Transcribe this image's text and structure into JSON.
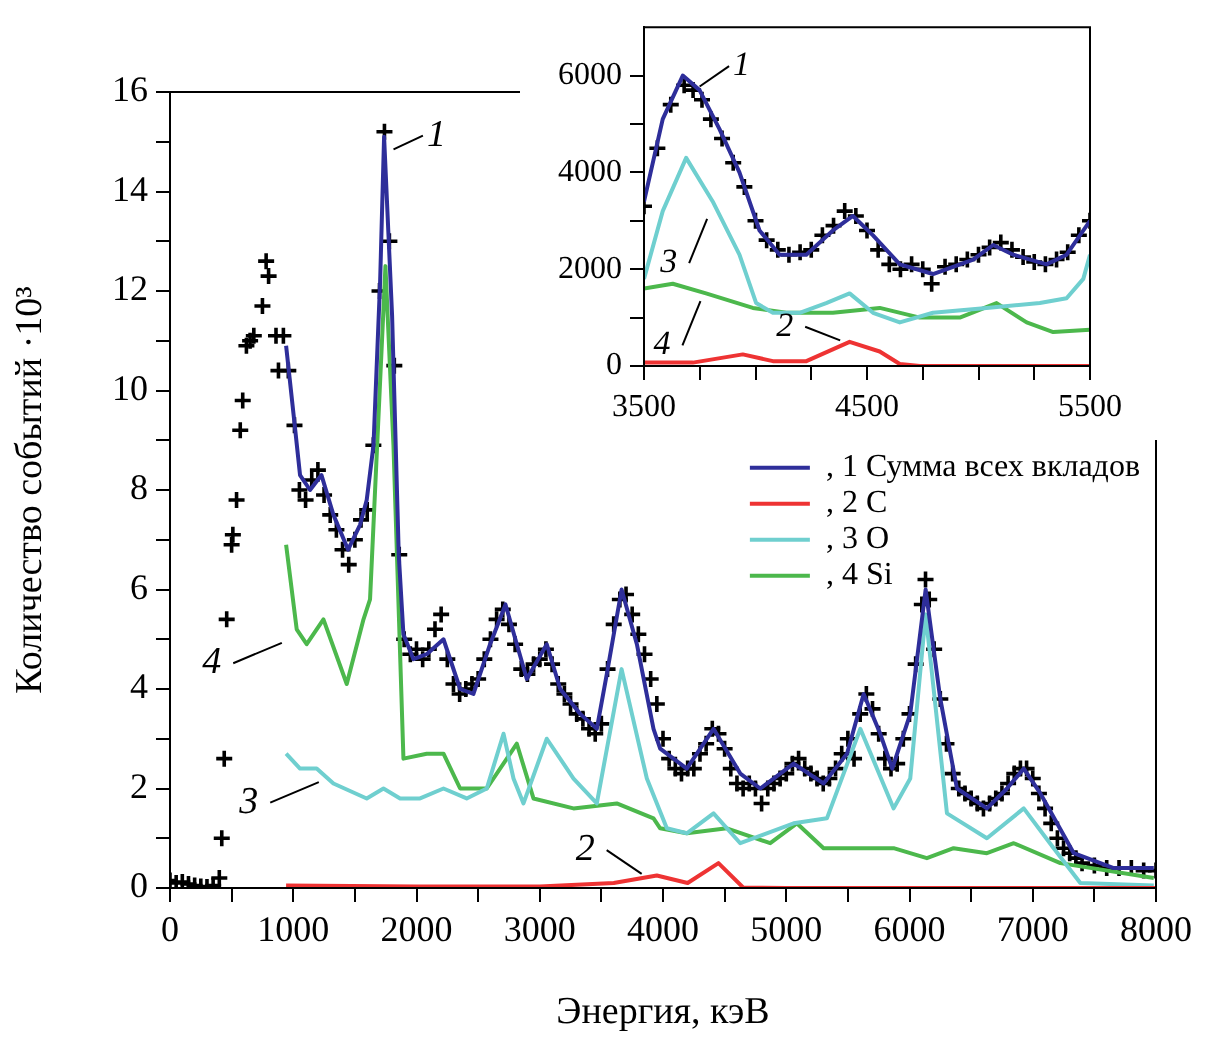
{
  "chart_data": [
    {
      "type": "line",
      "xlabel": "Энергия, кэВ",
      "ylabel": "Количество событий ·10³",
      "legend": "right",
      "grid": false,
      "marker": "none",
      "line_style": "solid",
      "xlim": [
        0,
        8000
      ],
      "ylim": [
        0,
        16
      ],
      "xticks": [
        0,
        {
          "value": 500,
          "label": null
        },
        1000,
        {
          "value": 1500,
          "label": null
        },
        2000,
        {
          "value": 2500,
          "label": null
        },
        3000,
        {
          "value": 3500,
          "label": null
        },
        4000,
        {
          "value": 4500,
          "label": null
        },
        5000,
        {
          "value": 5500,
          "label": null
        },
        6000,
        {
          "value": 6500,
          "label": null
        },
        7000,
        {
          "value": 7500,
          "label": null
        },
        8000
      ],
      "yticks": [
        0,
        {
          "value": 1,
          "label": null
        },
        2,
        {
          "value": 3,
          "label": null
        },
        4,
        {
          "value": 5,
          "label": null
        },
        6,
        {
          "value": 7,
          "label": null
        },
        8,
        {
          "value": 9,
          "label": null
        },
        10,
        {
          "value": 11,
          "label": null
        },
        12,
        {
          "value": 13,
          "label": null
        },
        14,
        {
          "value": 15,
          "label": null
        },
        16
      ],
      "annotations": [
        {
          "text": "1",
          "x": 1760,
          "y": 14.8
        },
        {
          "text": "2",
          "x": 3900,
          "y": 0.2
        },
        {
          "text": "3",
          "x": 1300,
          "y": 2.2
        },
        {
          "text": "4",
          "x": 1000,
          "y": 5.0
        }
      ],
      "series": [
        {
          "type": "scatter",
          "marker": "cross",
          "color": "#000000",
          "x": [
            0,
            50,
            100,
            150,
            200,
            250,
            300,
            350,
            400,
            420,
            440,
            460,
            500,
            510,
            540,
            570,
            590,
            620,
            650,
            680,
            750,
            780,
            800,
            860,
            880,
            920,
            960,
            1010,
            1050,
            1100,
            1150,
            1200,
            1250,
            1300,
            1350,
            1400,
            1450,
            1500,
            1550,
            1600,
            1650,
            1700,
            1740,
            1780,
            1820,
            1860,
            1900,
            1950,
            2000,
            2050,
            2100,
            2150,
            2200,
            2250,
            2300,
            2350,
            2400,
            2450,
            2500,
            2550,
            2600,
            2650,
            2700,
            2750,
            2800,
            2850,
            2900,
            2950,
            3000,
            3050,
            3100,
            3150,
            3200,
            3250,
            3300,
            3350,
            3400,
            3450,
            3500,
            3550,
            3600,
            3650,
            3700,
            3750,
            3800,
            3850,
            3900,
            3950,
            4000,
            4050,
            4100,
            4150,
            4200,
            4250,
            4300,
            4350,
            4400,
            4450,
            4500,
            4550,
            4600,
            4650,
            4700,
            4750,
            4800,
            4850,
            4900,
            4950,
            5000,
            5050,
            5100,
            5150,
            5200,
            5250,
            5300,
            5350,
            5400,
            5450,
            5500,
            5550,
            5600,
            5650,
            5700,
            5750,
            5800,
            5850,
            5900,
            5950,
            6000,
            6050,
            6100,
            6130,
            6160,
            6200,
            6250,
            6300,
            6350,
            6400,
            6450,
            6500,
            6550,
            6600,
            6650,
            6700,
            6750,
            6800,
            6850,
            6900,
            6950,
            7000,
            7050,
            7100,
            7150,
            7200,
            7250,
            7300,
            7350,
            7400,
            7500,
            7600,
            7700,
            7800,
            7900,
            8000
          ],
          "values": [
            0.15,
            0.1,
            0.12,
            0.08,
            0.05,
            0.03,
            0.02,
            0.05,
            0.2,
            1.0,
            2.6,
            5.4,
            6.9,
            7.1,
            7.8,
            9.2,
            9.8,
            10.9,
            11.0,
            11.1,
            11.7,
            12.6,
            12.3,
            11.1,
            10.4,
            11.1,
            10.4,
            9.3,
            8.0,
            7.8,
            8.2,
            8.4,
            7.9,
            7.5,
            7.2,
            6.8,
            6.5,
            7.0,
            7.4,
            7.6,
            8.9,
            12.0,
            15.2,
            13.0,
            10.5,
            6.7,
            5.0,
            4.7,
            4.8,
            4.6,
            4.8,
            5.2,
            5.5,
            4.6,
            4.1,
            3.9,
            4.0,
            4.1,
            4.2,
            4.6,
            5.0,
            5.4,
            5.6,
            5.3,
            4.9,
            4.4,
            4.3,
            4.5,
            4.6,
            4.8,
            4.5,
            4.1,
            3.9,
            3.7,
            3.5,
            3.4,
            3.2,
            3.1,
            3.3,
            4.4,
            5.3,
            5.8,
            5.9,
            5.5,
            5.1,
            4.7,
            4.2,
            3.7,
            3.0,
            2.6,
            2.4,
            2.3,
            2.4,
            2.4,
            2.7,
            2.9,
            3.2,
            3.1,
            2.8,
            2.4,
            2.1,
            2.0,
            2.1,
            2.0,
            1.7,
            2.0,
            2.1,
            2.2,
            2.3,
            2.5,
            2.6,
            2.4,
            2.3,
            2.2,
            2.1,
            2.2,
            2.4,
            2.7,
            3.0,
            2.6,
            3.5,
            3.9,
            3.6,
            3.1,
            2.6,
            2.4,
            2.5,
            3.0,
            3.5,
            4.5,
            5.7,
            6.2,
            5.8,
            4.8,
            3.8,
            2.9,
            2.3,
            2.0,
            1.9,
            1.8,
            1.7,
            1.6,
            1.7,
            1.8,
            1.9,
            2.1,
            2.3,
            2.4,
            2.4,
            2.2,
            1.9,
            1.6,
            1.3,
            1.0,
            0.8,
            0.7,
            0.6,
            0.5,
            0.45,
            0.4,
            0.4,
            0.4,
            0.35,
            0.35
          ]
        },
        {
          "name": ", 1 Сумма всех вкладов",
          "color": "#2e2e9a",
          "x": [
            942,
            1012,
            1055,
            1136,
            1229,
            1326,
            1445,
            1542,
            1596,
            1651,
            1705,
            1737,
            1802,
            1856,
            1894,
            1975,
            2083,
            2219,
            2354,
            2462,
            2597,
            2722,
            2814,
            2895,
            3057,
            3166,
            3328,
            3463,
            3544,
            3664,
            3788,
            3923,
            3977,
            4193,
            4410,
            4627,
            4789,
            5060,
            5303,
            5493,
            5628,
            5763,
            5860,
            6006,
            6131,
            6250,
            6385,
            6628,
            6791,
            6927,
            7062,
            7333,
            7657,
            7982
          ],
          "values": [
            10.9,
            9.3,
            8.3,
            8.0,
            8.3,
            7.5,
            6.8,
            7.3,
            7.8,
            8.9,
            12.2,
            15.1,
            11.5,
            6.7,
            5.1,
            4.6,
            4.7,
            5.0,
            4.0,
            3.9,
            4.9,
            5.7,
            4.9,
            4.2,
            4.9,
            4.0,
            3.5,
            3.2,
            4.3,
            6.0,
            4.9,
            3.2,
            2.8,
            2.4,
            3.2,
            2.3,
            2.0,
            2.5,
            2.1,
            2.7,
            3.9,
            3.1,
            2.4,
            3.5,
            6.0,
            3.8,
            2.0,
            1.6,
            2.0,
            2.4,
            1.9,
            0.7,
            0.4,
            0.4
          ]
        },
        {
          "name": ", 2 C",
          "color": "#ee3333",
          "x": [
            942,
            2000,
            3000,
            3600,
            3950,
            4200,
            4450,
            4650,
            5000,
            8000
          ],
          "values": [
            0.05,
            0.03,
            0.03,
            0.1,
            0.25,
            0.1,
            0.5,
            0.01,
            0,
            0
          ]
        },
        {
          "name": ", 3 O",
          "color": "#6fcfcf",
          "x": [
            942,
            1055,
            1190,
            1326,
            1596,
            1732,
            1867,
            2029,
            2219,
            2407,
            2570,
            2706,
            2787,
            2868,
            3057,
            3274,
            3463,
            3664,
            3869,
            4031,
            4193,
            4410,
            4627,
            5060,
            5330,
            5601,
            5871,
            6006,
            6131,
            6304,
            6628,
            6927,
            7170,
            7386,
            7982
          ],
          "values": [
            2.7,
            2.4,
            2.4,
            2.1,
            1.8,
            2.0,
            1.8,
            1.8,
            2.0,
            1.8,
            2.0,
            3.1,
            2.2,
            1.7,
            3.0,
            2.2,
            1.7,
            4.4,
            2.2,
            1.2,
            1.1,
            1.5,
            0.9,
            1.3,
            1.4,
            3.2,
            1.6,
            2.2,
            5.5,
            1.5,
            1.0,
            1.6,
            0.8,
            0.1,
            0.05
          ]
        },
        {
          "name": ", 4 Si",
          "color": "#4cb84c",
          "x": [
            942,
            1028,
            1109,
            1245,
            1434,
            1570,
            1623,
            1748,
            1813,
            1894,
            2083,
            2219,
            2354,
            2570,
            2814,
            2949,
            3274,
            3625,
            3923,
            3977,
            4193,
            4518,
            4870,
            5086,
            5303,
            5871,
            6141,
            6358,
            6628,
            6846,
            7224,
            7982
          ],
          "values": [
            6.9,
            5.2,
            4.9,
            5.4,
            4.1,
            5.4,
            5.8,
            12.5,
            8.9,
            2.6,
            2.7,
            2.7,
            2.0,
            2.0,
            2.9,
            1.8,
            1.6,
            1.7,
            1.4,
            1.2,
            1.1,
            1.2,
            0.9,
            1.3,
            0.8,
            0.8,
            0.6,
            0.8,
            0.7,
            0.9,
            0.5,
            0.2
          ]
        }
      ]
    },
    {
      "type": "line",
      "grid": false,
      "marker": "none",
      "line_style": "solid",
      "xlim": [
        3500,
        5500
      ],
      "ylim": [
        0,
        7000
      ],
      "xticks": [
        3500,
        {
          "value": 3750,
          "label": null
        },
        {
          "value": 4000,
          "label": null
        },
        {
          "value": 4250,
          "label": null
        },
        4500,
        {
          "value": 4750,
          "label": null
        },
        {
          "value": 5000,
          "label": null
        },
        {
          "value": 5250,
          "label": null
        },
        5500
      ],
      "yticks": [
        0,
        {
          "value": 1000,
          "label": null
        },
        2000,
        {
          "value": 3000,
          "label": null
        },
        4000,
        {
          "value": 5000,
          "label": null
        },
        6000
      ],
      "annotations": [
        {
          "text": "1",
          "x": 3720,
          "y": 5700
        },
        {
          "text": "2",
          "x": 4420,
          "y": 480
        },
        {
          "text": "3",
          "x": 3810,
          "y": 3200
        },
        {
          "text": "4",
          "x": 3780,
          "y": 1500
        }
      ],
      "series": [
        {
          "type": "scatter",
          "marker": "cross",
          "color": "#000000",
          "x": [
            3500,
            3560,
            3620,
            3680,
            3720,
            3760,
            3800,
            3850,
            3900,
            3950,
            4000,
            4050,
            4100,
            4150,
            4200,
            4250,
            4300,
            4350,
            4400,
            4450,
            4500,
            4550,
            4600,
            4650,
            4700,
            4750,
            4790,
            4850,
            4900,
            4950,
            5000,
            5050,
            5100,
            5150,
            5200,
            5250,
            5300,
            5350,
            5400,
            5450,
            5500
          ],
          "values": [
            3300,
            4500,
            5400,
            5800,
            5700,
            5500,
            5100,
            4700,
            4200,
            3700,
            3000,
            2600,
            2400,
            2300,
            2350,
            2400,
            2700,
            2900,
            3200,
            3100,
            2800,
            2400,
            2100,
            2000,
            2100,
            2000,
            1700,
            2050,
            2100,
            2200,
            2300,
            2450,
            2550,
            2400,
            2250,
            2150,
            2100,
            2200,
            2350,
            2700,
            3000
          ]
        },
        {
          "color": "#2e2e9a",
          "x": [
            3500,
            3584,
            3674,
            3749,
            3838,
            3928,
            4018,
            4108,
            4228,
            4347,
            4437,
            4527,
            4647,
            4796,
            4976,
            5066,
            5156,
            5305,
            5395,
            5500
          ],
          "values": [
            3400,
            5100,
            6000,
            5700,
            4900,
            4000,
            2800,
            2300,
            2300,
            2800,
            3100,
            2700,
            2100,
            1900,
            2200,
            2500,
            2300,
            2100,
            2300,
            3000
          ]
        },
        {
          "color": "#ee3333",
          "x": [
            3500,
            3719,
            3943,
            4078,
            4228,
            4422,
            4557,
            4647,
            4737,
            5500
          ],
          "values": [
            70,
            70,
            240,
            100,
            100,
            500,
            300,
            40,
            0,
            0
          ]
        },
        {
          "color": "#6fcfcf",
          "x": [
            3500,
            3584,
            3689,
            3808,
            3928,
            4003,
            4078,
            4198,
            4317,
            4422,
            4527,
            4647,
            4796,
            5036,
            5275,
            5395,
            5470,
            5500
          ],
          "values": [
            1800,
            3200,
            4300,
            3400,
            2300,
            1300,
            1100,
            1100,
            1300,
            1500,
            1100,
            900,
            1100,
            1200,
            1300,
            1400,
            1800,
            2300
          ]
        },
        {
          "color": "#4cb84c",
          "x": [
            3500,
            3629,
            3778,
            3988,
            4138,
            4347,
            4557,
            4737,
            4916,
            5081,
            5216,
            5335,
            5500
          ],
          "values": [
            1600,
            1700,
            1500,
            1200,
            1100,
            1100,
            1200,
            1000,
            1000,
            1300,
            900,
            700,
            750
          ]
        }
      ]
    }
  ]
}
